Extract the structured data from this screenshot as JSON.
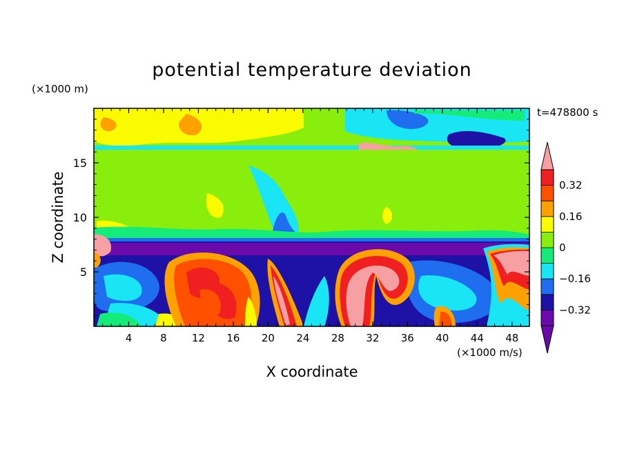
{
  "chart_data": {
    "type": "heatmap",
    "title": "potential temperature deviation",
    "xlabel": "X coordinate",
    "ylabel": "Z coordinate",
    "x_unit": "(×1000 m/s)",
    "y_unit": "(×1000 m)",
    "time_label": "t=478800 s",
    "xlim": [
      0,
      50
    ],
    "ylim": [
      0,
      20
    ],
    "x_ticks": [
      4,
      8,
      12,
      16,
      20,
      24,
      28,
      32,
      36,
      40,
      44,
      48
    ],
    "y_ticks": [
      5,
      10,
      15
    ],
    "colorbar": {
      "levels": [
        -0.4,
        -0.32,
        -0.24,
        -0.16,
        -0.08,
        0,
        0.08,
        0.16,
        0.24,
        0.32,
        0.4
      ],
      "tick_labels": [
        "0.32",
        "0.16",
        "0",
        "−0.16",
        "−0.32"
      ],
      "tick_values": [
        0.32,
        0.16,
        0,
        -0.16,
        -0.32
      ],
      "colors": [
        "#6a0aab",
        "#1e12a6",
        "#1f6ef0",
        "#19e5f5",
        "#14eb78",
        "#8aee0c",
        "#fbfb00",
        "#ffa100",
        "#ff5000",
        "#f02020",
        "#f6a0a4"
      ],
      "extend": "both"
    },
    "regions": [
      {
        "zmin": 8.0,
        "zmax": 20,
        "level": 0.04
      },
      {
        "zmin": 17.0,
        "zmax": 20,
        "level": 0.12
      },
      {
        "zmin": 16.0,
        "zmax": 16.5,
        "level": -0.12
      },
      {
        "zmin": 0,
        "zmax": 7.5,
        "level": -0.2
      }
    ]
  }
}
